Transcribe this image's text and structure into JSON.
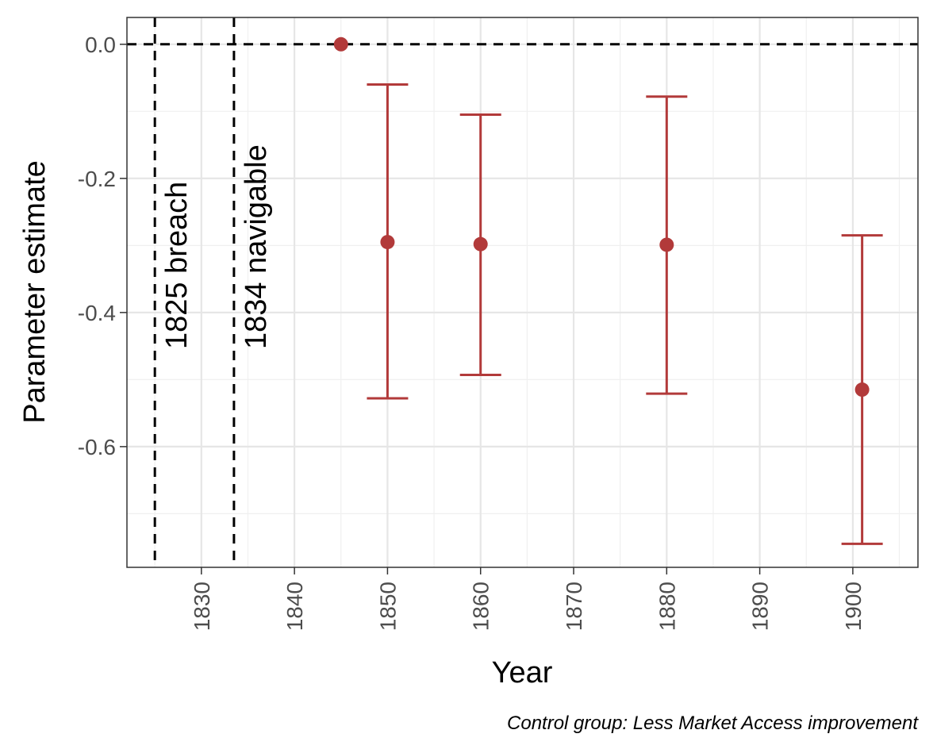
{
  "chart_data": {
    "type": "scatter",
    "title": "",
    "xlabel": "Year",
    "ylabel": "Parameter estimate",
    "caption": "Control group: Less Market Access improvement",
    "xlim": [
      1822,
      1907
    ],
    "ylim": [
      -0.78,
      0.04
    ],
    "x_ticks": [
      1830,
      1840,
      1850,
      1860,
      1870,
      1880,
      1890,
      1900
    ],
    "x_tick_labels": [
      "1830",
      "1840",
      "1850",
      "1860",
      "1870",
      "1880",
      "1890",
      "1900"
    ],
    "y_ticks": [
      0.0,
      -0.2,
      -0.4,
      -0.6
    ],
    "y_tick_labels": [
      "0.0",
      "-0.2",
      "-0.4",
      "-0.6"
    ],
    "grid": true,
    "legend": "none",
    "point_color": "#B23A3A",
    "reference_lines": {
      "horizontal": [
        {
          "y": 0
        }
      ],
      "vertical": [
        {
          "x": 1825,
          "label": "1825 breach"
        },
        {
          "x": 1833.5,
          "label": "1834 navigable"
        }
      ]
    },
    "points": [
      {
        "x": 1845,
        "y": 0.0
      },
      {
        "x": 1850,
        "y": -0.295,
        "lower": -0.528,
        "upper": -0.06
      },
      {
        "x": 1860,
        "y": -0.298,
        "lower": -0.493,
        "upper": -0.105
      },
      {
        "x": 1880,
        "y": -0.299,
        "lower": -0.521,
        "upper": -0.078
      },
      {
        "x": 1901,
        "y": -0.515,
        "lower": -0.745,
        "upper": -0.285
      }
    ]
  }
}
